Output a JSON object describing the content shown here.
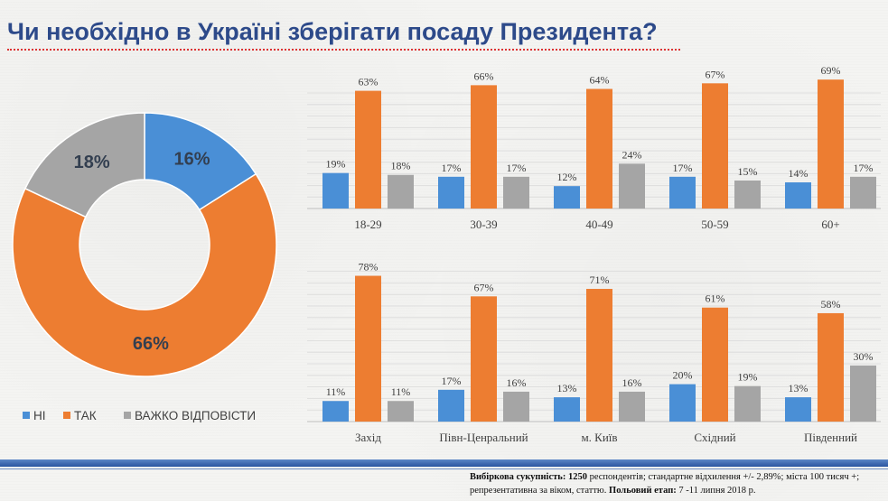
{
  "title": "Чи необхідно в Україні зберігати посаду Президента?",
  "colors": {
    "ni": "#4a8fd6",
    "tak": "#ed7d31",
    "vazhko": "#a5a5a5"
  },
  "chart_data": [
    {
      "type": "pie",
      "subtype": "donut",
      "categories": [
        "НІ",
        "ТАК",
        "ВАЖКО ВІДПОВІСТИ"
      ],
      "values": [
        16,
        66,
        18
      ],
      "labels": [
        "16%",
        "66%",
        "18%"
      ],
      "legend_position": "bottom"
    },
    {
      "type": "bar",
      "categories": [
        "18-29",
        "30-39",
        "40-49",
        "50-59",
        "60+"
      ],
      "series": [
        {
          "name": "НІ",
          "values": [
            19,
            17,
            12,
            17,
            14
          ],
          "labels": [
            "19%",
            "17%",
            "12%",
            "17%",
            "14%"
          ]
        },
        {
          "name": "ТАК",
          "values": [
            63,
            66,
            64,
            67,
            69
          ],
          "labels": [
            "63%",
            "66%",
            "64%",
            "67%",
            "69%"
          ]
        },
        {
          "name": "ВАЖКО ВІДПОВІСТИ",
          "values": [
            18,
            17,
            24,
            15,
            17
          ],
          "labels": [
            "18%",
            "17%",
            "24%",
            "15%",
            "17%"
          ]
        }
      ],
      "grid": true
    },
    {
      "type": "bar",
      "categories": [
        "Захід",
        "Півн-Ценральний",
        "м. Київ",
        "Східний",
        "Південний"
      ],
      "series": [
        {
          "name": "НІ",
          "values": [
            11,
            17,
            13,
            20,
            13
          ],
          "labels": [
            "11%",
            "17%",
            "13%",
            "20%",
            "13%"
          ]
        },
        {
          "name": "ТАК",
          "values": [
            78,
            67,
            71,
            61,
            58
          ],
          "labels": [
            "78%",
            "67%",
            "71%",
            "61%",
            "58%"
          ]
        },
        {
          "name": "ВАЖКО ВІДПОВІСТИ",
          "values": [
            11,
            16,
            16,
            19,
            30
          ],
          "labels": [
            "11%",
            "16%",
            "16%",
            "19%",
            "30%"
          ]
        }
      ],
      "grid": true
    }
  ],
  "footnote": {
    "sample_label": "Вибіркова сукупність:",
    "sample_count": "1250",
    "sample_text": "респондентів; стандартне  відхилення +/- 2,89%; міста 100 тисяч +; репрезентативна за віком, статтю.",
    "stage_label": "Польовий етап:",
    "stage_text": "7 -11 липня 2018 р."
  }
}
